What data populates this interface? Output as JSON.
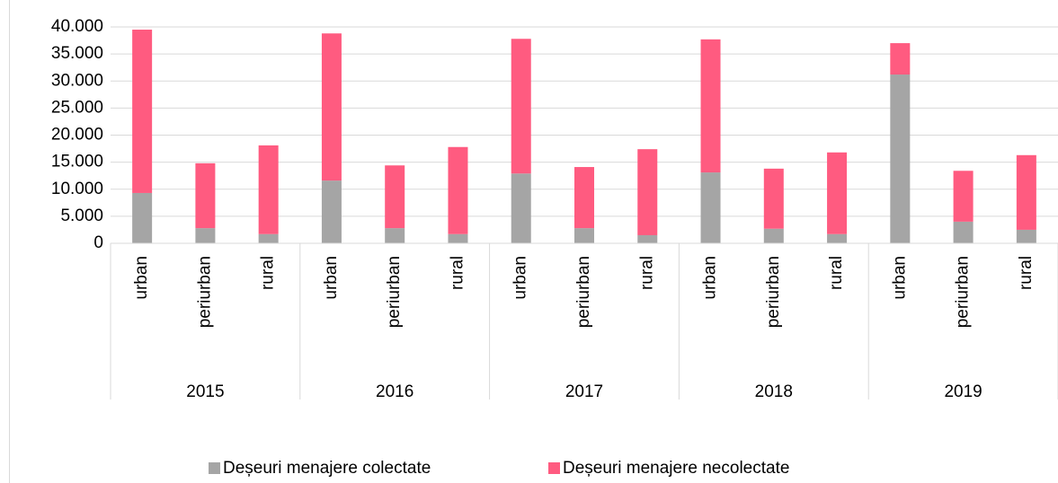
{
  "chart_data": {
    "type": "stacked_bar",
    "categories": [
      "urban",
      "periurban",
      "rural",
      "urban",
      "periurban",
      "rural",
      "urban",
      "periurban",
      "rural",
      "urban",
      "periurban",
      "rural",
      "urban",
      "periurban",
      "rural"
    ],
    "groups": [
      "2015",
      "2016",
      "2017",
      "2018",
      "2019"
    ],
    "series": [
      {
        "name": "Deșeuri menajere colectate",
        "color": "#a5a5a5",
        "values": [
          9300,
          2800,
          1700,
          11600,
          2800,
          1700,
          12900,
          2800,
          1500,
          13100,
          2700,
          1700,
          31200,
          4000,
          2500
        ]
      },
      {
        "name": "Deșeuri menajere necolectate",
        "color": "#ff5b80",
        "values": [
          30200,
          12000,
          16400,
          27200,
          11600,
          16100,
          24900,
          11300,
          15900,
          24600,
          11100,
          15100,
          5800,
          9400,
          13800
        ]
      }
    ],
    "ylim": [
      0,
      40000
    ],
    "yticks": [
      0,
      {
        "value": 5000,
        "label": "5.000"
      },
      {
        "value": 10000,
        "label": "10.000"
      },
      {
        "value": 15000,
        "label": "15.000"
      },
      {
        "value": 20000,
        "label": "20.000"
      },
      {
        "value": 25000,
        "label": "25.000"
      },
      {
        "value": 30000,
        "label": "30.000"
      },
      {
        "value": 35000,
        "label": "35.000"
      },
      {
        "value": 40000,
        "label": "40.000"
      }
    ],
    "grid": true,
    "legend": "bottom"
  }
}
